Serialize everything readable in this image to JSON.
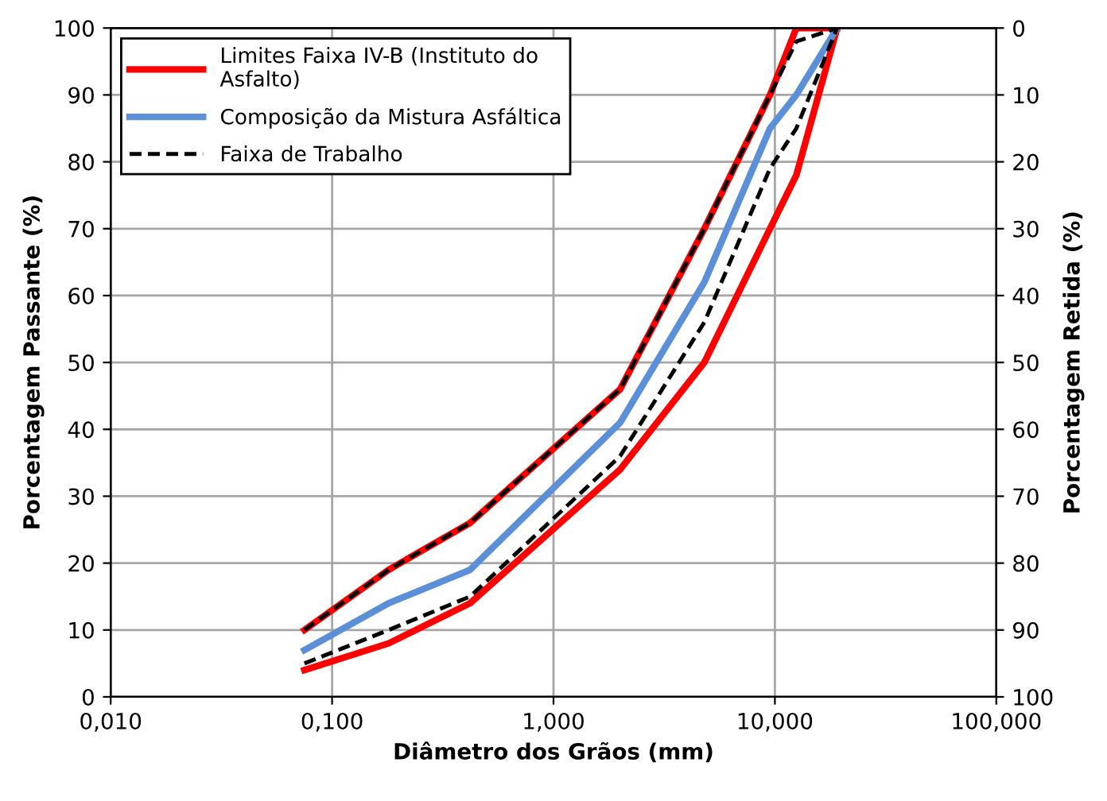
{
  "chart_data": {
    "type": "line",
    "xlabel": "Diâmetro dos Grãos (mm)",
    "ylabel": "Porcentagem Passante (%)",
    "y2label": "Porcentagem Retida (%)",
    "log": "x",
    "grid": true,
    "legend": "top left",
    "marker": "none",
    "x": [
      0.075,
      0.18,
      0.42,
      2.0,
      4.8,
      9.5,
      12.5,
      19.1
    ],
    "xlim": [
      0.01,
      100
    ],
    "xticks": [
      {
        "value": 0.01,
        "label": "0,010"
      },
      {
        "value": 0.1,
        "label": "0,100"
      },
      {
        "value": 1,
        "label": "1,000"
      },
      {
        "value": 10,
        "label": "10,000"
      },
      {
        "value": 100,
        "label": "100,000"
      }
    ],
    "ylim": [
      0,
      100
    ],
    "yticks": [
      0,
      10,
      20,
      30,
      40,
      50,
      60,
      70,
      80,
      90,
      100
    ],
    "y2lim": [
      100,
      0
    ],
    "y2ticks": [
      0,
      10,
      20,
      30,
      40,
      50,
      60,
      70,
      80,
      90,
      100
    ],
    "series": [
      {
        "name": "Limites Faixa IV-B (Instituto do\nAsfalto)",
        "color": "#ff0000",
        "line_style": "solid",
        "values": [
          10,
          19,
          26,
          46,
          70,
          90,
          100,
          100
        ]
      },
      {
        "color": "#ff0000",
        "line_style": "solid",
        "values": [
          4,
          8,
          14,
          34,
          50,
          70,
          78,
          100
        ]
      },
      {
        "name": "Composição da Mistura Asfáltica",
        "color": "#5b8fd8",
        "line_style": "solid",
        "values": [
          7,
          14,
          19,
          41,
          62,
          85,
          90,
          100
        ]
      },
      {
        "name": "Faixa de Trabalho",
        "color": "#000000",
        "line_style": "dashed",
        "values": [
          10,
          19,
          26,
          46,
          70,
          90,
          98,
          100
        ]
      },
      {
        "color": "#000000",
        "line_style": "dashed",
        "values": [
          5,
          10,
          15,
          36,
          56,
          79,
          85,
          100
        ]
      }
    ]
  }
}
